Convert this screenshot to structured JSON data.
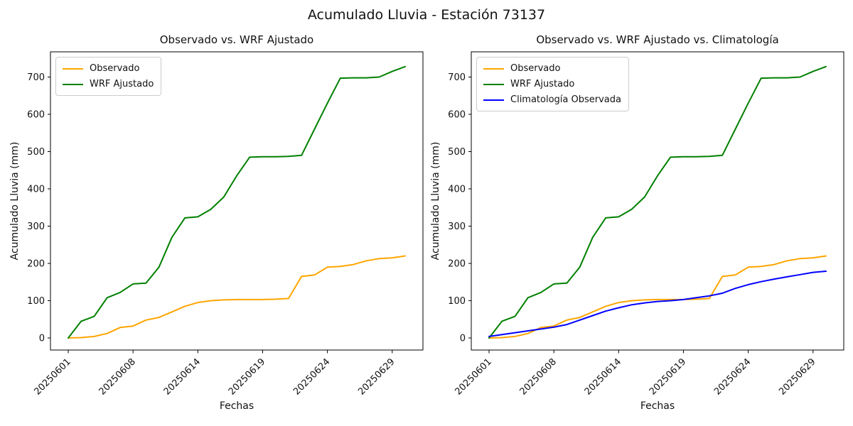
{
  "figure_title": "Acumulado Lluvia - Estación 73137",
  "background_color": "#ffffff",
  "chart_data": [
    {
      "type": "line",
      "title": "Observado vs. WRF Ajustado",
      "xlabel": "Fechas",
      "ylabel": "Acumulado Lluvia (mm)",
      "n_points": 27,
      "x_tick_labels": [
        "20250601",
        "20250608",
        "20250614",
        "20250619",
        "20250624",
        "20250629"
      ],
      "x_tick_indices": [
        0,
        5,
        10,
        15,
        20,
        25
      ],
      "y_ticks": [
        0,
        100,
        200,
        300,
        400,
        500,
        600,
        700
      ],
      "ylim": [
        -35,
        768
      ],
      "grid": false,
      "legend_position": "upper-left",
      "series": [
        {
          "name": "Observado",
          "color": "#FFA500",
          "values": [
            0,
            1,
            4,
            12,
            28,
            32,
            48,
            55,
            70,
            85,
            95,
            100,
            102,
            103,
            103,
            103,
            104,
            106,
            165,
            169,
            190,
            192,
            197,
            207,
            213,
            215,
            220
          ]
        },
        {
          "name": "WRF Ajustado",
          "color": "#008000",
          "values": [
            0,
            45,
            58,
            108,
            122,
            145,
            147,
            190,
            270,
            322,
            325,
            345,
            378,
            435,
            485,
            486,
            486,
            487,
            490,
            560,
            630,
            697,
            698,
            698,
            700,
            715,
            728
          ]
        }
      ]
    },
    {
      "type": "line",
      "title": "Observado vs. WRF Ajustado vs. Climatología",
      "xlabel": "Fechas",
      "ylabel": "Acumulado Lluvia (mm)",
      "n_points": 27,
      "x_tick_labels": [
        "20250601",
        "20250608",
        "20250614",
        "20250619",
        "20250624",
        "20250629"
      ],
      "x_tick_indices": [
        0,
        5,
        10,
        15,
        20,
        25
      ],
      "y_ticks": [
        0,
        100,
        200,
        300,
        400,
        500,
        600,
        700
      ],
      "ylim": [
        -35,
        768
      ],
      "grid": false,
      "legend_position": "upper-left",
      "series": [
        {
          "name": "Observado",
          "color": "#FFA500",
          "values": [
            0,
            1,
            4,
            12,
            28,
            32,
            48,
            55,
            70,
            85,
            95,
            100,
            102,
            103,
            103,
            103,
            104,
            106,
            165,
            169,
            190,
            192,
            197,
            207,
            213,
            215,
            220
          ]
        },
        {
          "name": "WRF Ajustado",
          "color": "#008000",
          "values": [
            0,
            45,
            58,
            108,
            122,
            145,
            147,
            190,
            270,
            322,
            325,
            345,
            378,
            435,
            485,
            486,
            486,
            487,
            490,
            560,
            630,
            697,
            698,
            698,
            700,
            715,
            728
          ]
        },
        {
          "name": "Climatología Observada",
          "color": "#0000FF",
          "values": [
            4,
            9,
            14,
            19,
            24,
            29,
            36,
            48,
            60,
            72,
            81,
            89,
            94,
            98,
            100,
            103,
            108,
            113,
            120,
            133,
            143,
            151,
            158,
            164,
            170,
            176,
            179
          ]
        }
      ]
    }
  ]
}
